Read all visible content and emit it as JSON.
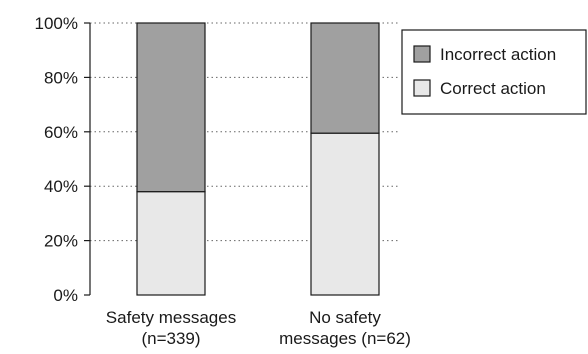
{
  "chart_data": {
    "type": "bar",
    "stacked": true,
    "percent": true,
    "categories": [
      [
        "Safety messages",
        "(n=339)"
      ],
      [
        "No safety",
        "messages (n=62)"
      ]
    ],
    "series": [
      {
        "name": "Correct action",
        "values": [
          38,
          59.5
        ],
        "color": "#e8e8e8"
      },
      {
        "name": "Incorrect action",
        "values": [
          62,
          40.5
        ],
        "color": "#a0a0a0"
      }
    ],
    "legend_order": [
      "Incorrect action",
      "Correct action"
    ],
    "ylim": [
      0,
      100
    ],
    "yticks": [
      "0%",
      "20%",
      "40%",
      "60%",
      "80%",
      "100%"
    ],
    "grid": "dotted horizontal",
    "legend_position": "right"
  }
}
